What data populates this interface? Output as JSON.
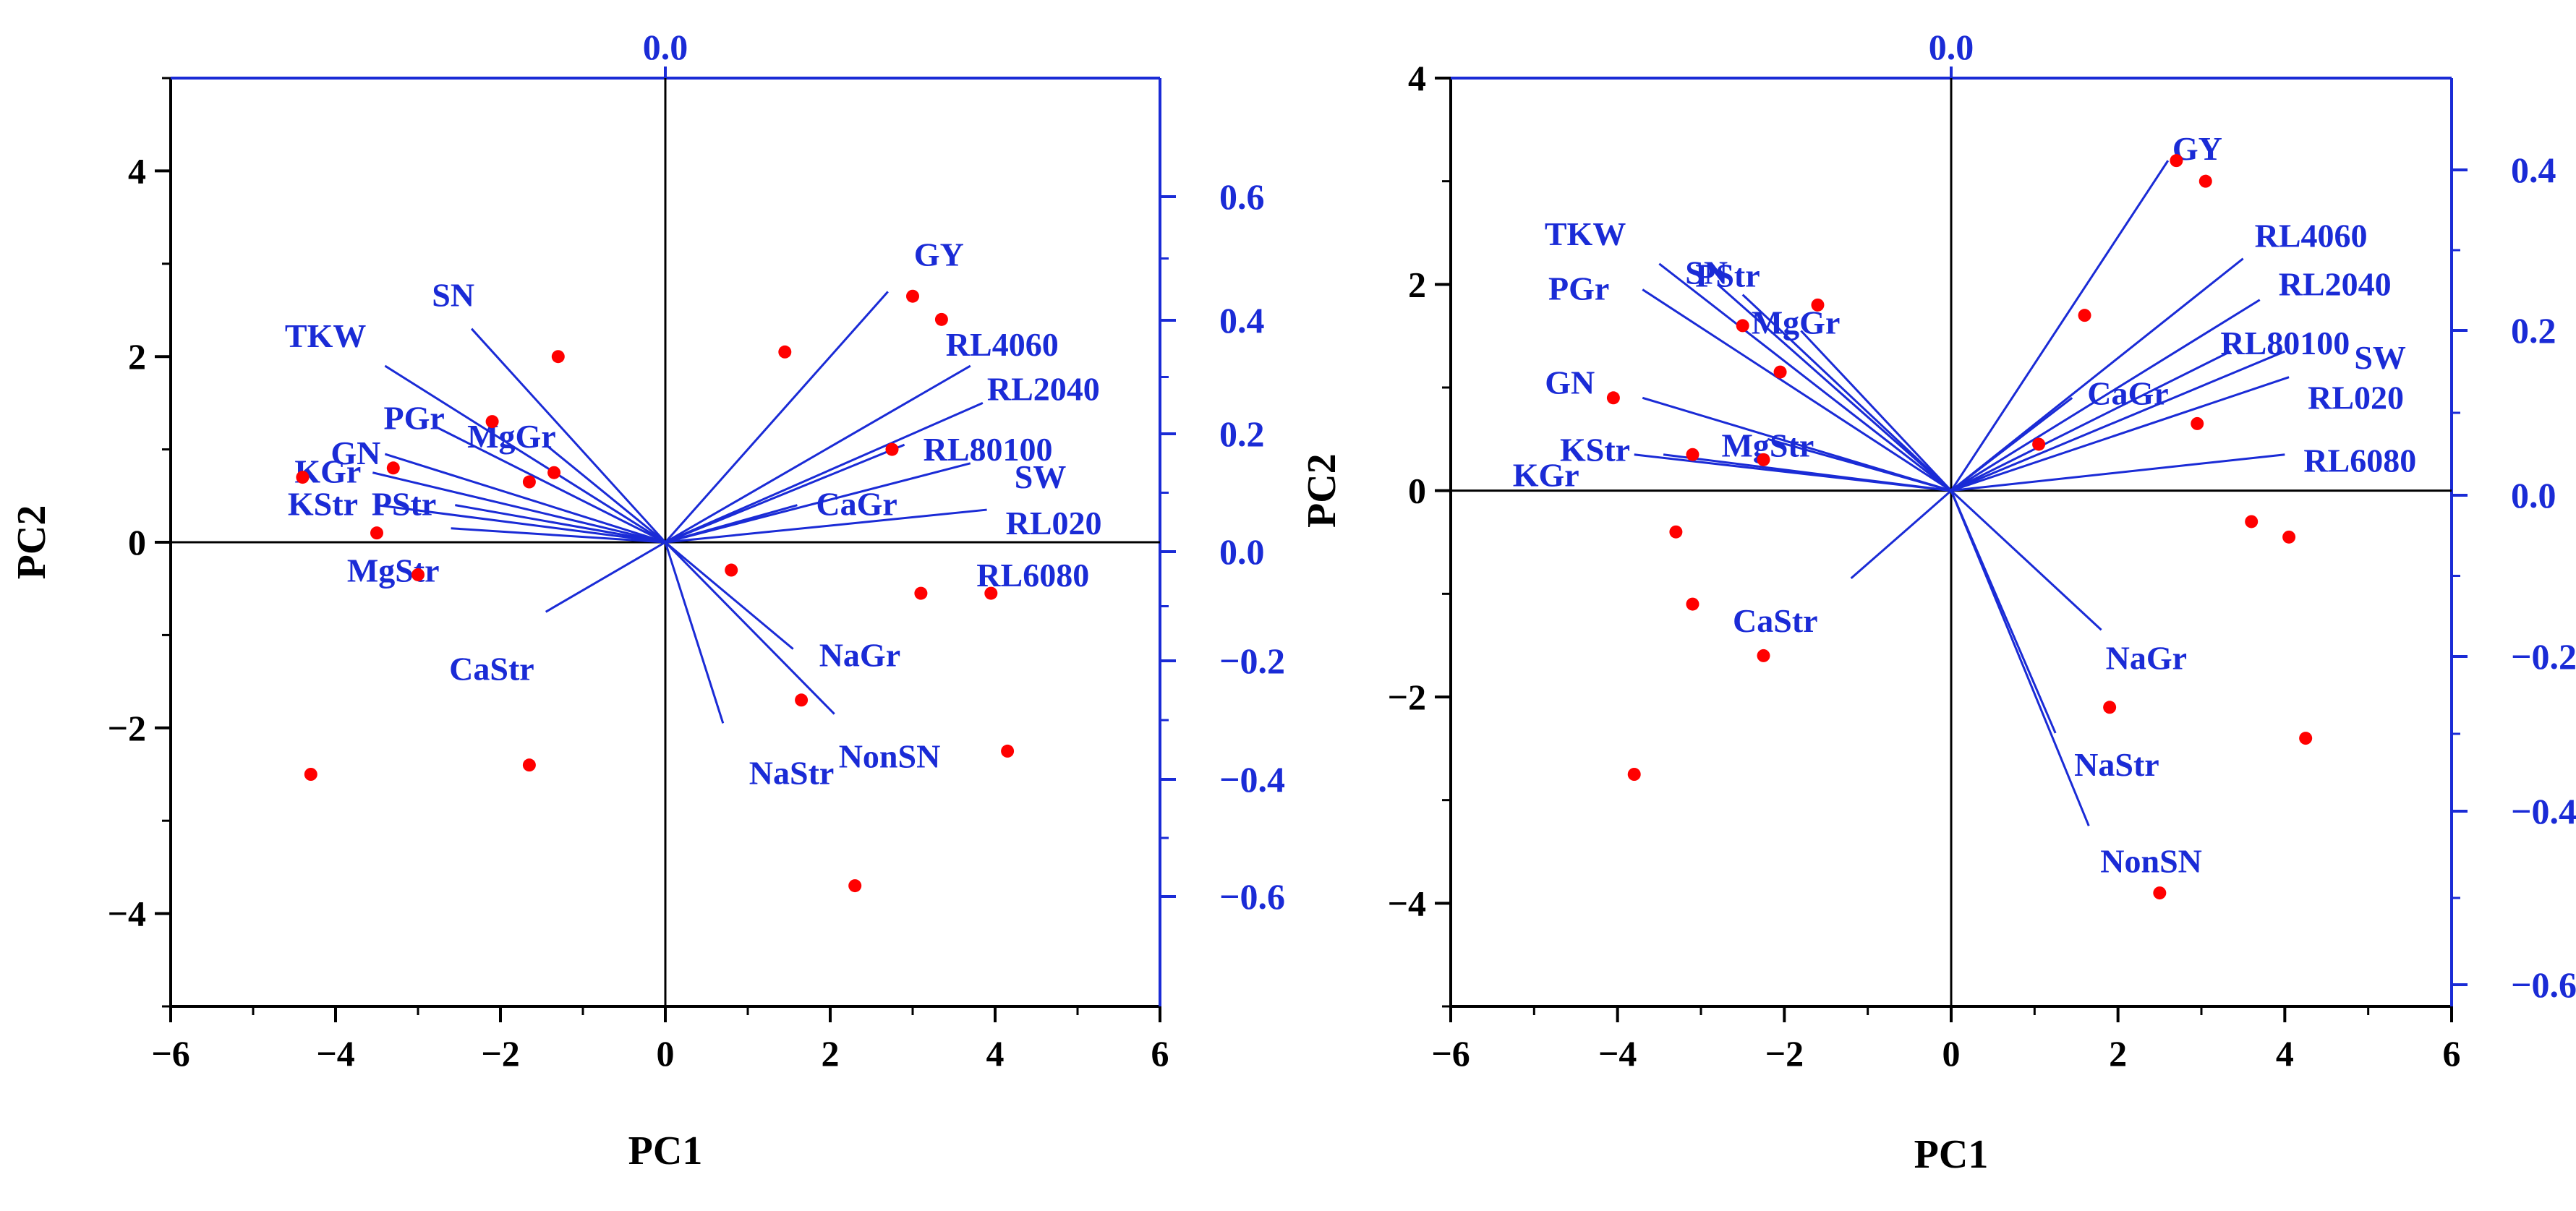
{
  "chart_data": [
    {
      "type": "scatter",
      "subtype": "biplot",
      "title": "",
      "xlabel": "PC1",
      "ylabel": "PC2",
      "xlim": [
        -6,
        6
      ],
      "ylim": [
        -5,
        5
      ],
      "x_ticks": [
        "−6",
        "−4",
        "−2",
        "0",
        "2",
        "4",
        "6"
      ],
      "y_ticks": [
        "−4",
        "−2",
        "0",
        "2",
        "4"
      ],
      "top_axis_label": "0.0",
      "right_axis": {
        "range": [
          -0.8,
          0.8
        ],
        "ticks": [
          "−0.6",
          "−0.4",
          "−0.2",
          "0.0",
          "0.2",
          "0.4",
          "0.6"
        ]
      },
      "points": [
        {
          "x": -4.4,
          "y": 0.7
        },
        {
          "x": -4.3,
          "y": -2.5
        },
        {
          "x": -3.5,
          "y": 0.1
        },
        {
          "x": -3.3,
          "y": 0.8
        },
        {
          "x": -3.0,
          "y": -0.35
        },
        {
          "x": -2.1,
          "y": 1.3
        },
        {
          "x": -1.65,
          "y": 0.65
        },
        {
          "x": -1.65,
          "y": -2.4
        },
        {
          "x": -1.35,
          "y": 0.75
        },
        {
          "x": -1.3,
          "y": 2.0
        },
        {
          "x": 0.8,
          "y": -0.3
        },
        {
          "x": 1.45,
          "y": 2.05
        },
        {
          "x": 1.65,
          "y": -1.7
        },
        {
          "x": 2.3,
          "y": -3.7
        },
        {
          "x": 2.75,
          "y": 1.0
        },
        {
          "x": 3.0,
          "y": 2.65
        },
        {
          "x": 3.1,
          "y": -0.55
        },
        {
          "x": 3.35,
          "y": 2.4
        },
        {
          "x": 3.95,
          "y": -0.55
        },
        {
          "x": 4.15,
          "y": -2.25
        }
      ],
      "vectors": [
        {
          "label": "GY",
          "x": 2.7,
          "y": 2.7
        },
        {
          "label": "RL4060",
          "x": 3.7,
          "y": 1.9
        },
        {
          "label": "RL2040",
          "x": 3.85,
          "y": 1.5
        },
        {
          "label": "RL80100",
          "x": 2.9,
          "y": 1.05
        },
        {
          "label": "SW",
          "x": 3.7,
          "y": 0.85
        },
        {
          "label": "RL020",
          "x": 3.9,
          "y": 0.35
        },
        {
          "label": "CaGr",
          "x": 1.6,
          "y": 0.4
        },
        {
          "label": "NaGr",
          "x": 1.55,
          "y": -1.15
        },
        {
          "label": "NonSN",
          "x": 2.05,
          "y": -1.85
        },
        {
          "label": "NaStr",
          "x": 0.7,
          "y": -1.95
        },
        {
          "label": "CaStr",
          "x": -1.45,
          "y": -0.75
        },
        {
          "label": "MgStr",
          "x": -2.6,
          "y": 0.15
        },
        {
          "label": "PStr",
          "x": -2.55,
          "y": 0.4
        },
        {
          "label": "KStr",
          "x": -3.5,
          "y": 0.4
        },
        {
          "label": "KGr",
          "x": -3.55,
          "y": 0.75
        },
        {
          "label": "GN",
          "x": -3.4,
          "y": 0.95
        },
        {
          "label": "PGr",
          "x": -2.8,
          "y": 1.25
        },
        {
          "label": "TKW",
          "x": -3.4,
          "y": 1.9
        },
        {
          "label": "SN",
          "x": -2.35,
          "y": 2.3
        },
        {
          "label": "MgGr",
          "x": -1.45,
          "y": 1.05
        }
      ]
    },
    {
      "type": "scatter",
      "subtype": "biplot",
      "title": "",
      "xlabel": "PC1",
      "ylabel": "PC2",
      "xlim": [
        -6,
        6
      ],
      "ylim": [
        -5,
        4
      ],
      "x_ticks": [
        "−6",
        "−4",
        "−2",
        "0",
        "2",
        "4",
        "6"
      ],
      "y_ticks": [
        "−4",
        "−2",
        "0",
        "2",
        "4"
      ],
      "top_axis_label": "0.0",
      "right_axis": {
        "range": [
          -0.63,
          0.51
        ],
        "ticks": [
          "−0.6",
          "−0.4",
          "−0.2",
          "0.0",
          "0.2",
          "0.4"
        ]
      },
      "points": [
        {
          "x": -4.05,
          "y": 0.9
        },
        {
          "x": -3.8,
          "y": -2.75
        },
        {
          "x": -3.3,
          "y": -0.4
        },
        {
          "x": -3.1,
          "y": 0.35
        },
        {
          "x": -3.1,
          "y": -1.1
        },
        {
          "x": -2.5,
          "y": 1.6
        },
        {
          "x": -2.25,
          "y": 0.3
        },
        {
          "x": -2.25,
          "y": -1.6
        },
        {
          "x": -2.05,
          "y": 1.15
        },
        {
          "x": -1.6,
          "y": 1.8
        },
        {
          "x": 1.05,
          "y": 0.45
        },
        {
          "x": 1.6,
          "y": 1.7
        },
        {
          "x": 1.9,
          "y": -2.1
        },
        {
          "x": 2.5,
          "y": -3.9
        },
        {
          "x": 2.7,
          "y": 3.2
        },
        {
          "x": 2.95,
          "y": 0.65
        },
        {
          "x": 3.05,
          "y": 3.0
        },
        {
          "x": 3.6,
          "y": -0.3
        },
        {
          "x": 4.05,
          "y": -0.45
        },
        {
          "x": 4.25,
          "y": -2.4
        }
      ],
      "vectors": [
        {
          "label": "GY",
          "x": 2.6,
          "y": 3.2
        },
        {
          "label": "RL4060",
          "x": 3.5,
          "y": 2.25
        },
        {
          "label": "RL2040",
          "x": 3.7,
          "y": 1.85
        },
        {
          "label": "RL80100",
          "x": 3.35,
          "y": 1.35
        },
        {
          "label": "SW",
          "x": 4.0,
          "y": 1.35
        },
        {
          "label": "RL020",
          "x": 4.05,
          "y": 1.1
        },
        {
          "label": "RL6080",
          "x": 4.0,
          "y": 0.35
        },
        {
          "label": "CaGr",
          "x": 1.45,
          "y": 0.9
        },
        {
          "label": "NaGr",
          "x": 1.8,
          "y": -1.35
        },
        {
          "label": "NaStr",
          "x": 1.25,
          "y": -2.35
        },
        {
          "label": "NonSN",
          "x": 1.65,
          "y": -3.25
        },
        {
          "label": "CaStr",
          "x": -1.2,
          "y": -0.85
        },
        {
          "label": "MgGr",
          "x": -1.8,
          "y": 1.55
        },
        {
          "label": "PStr",
          "x": -2.5,
          "y": 1.9
        },
        {
          "label": "SN",
          "x": -2.8,
          "y": 2.0
        },
        {
          "label": "TKW",
          "x": -3.5,
          "y": 2.2
        },
        {
          "label": "PGr",
          "x": -3.7,
          "y": 1.95
        },
        {
          "label": "GN",
          "x": -3.7,
          "y": 0.9
        },
        {
          "label": "KStr",
          "x": -3.45,
          "y": 0.35
        },
        {
          "label": "KGr",
          "x": -3.8,
          "y": 0.35
        },
        {
          "label": "MgStr",
          "x": -2.2,
          "y": 0.5
        }
      ]
    }
  ]
}
